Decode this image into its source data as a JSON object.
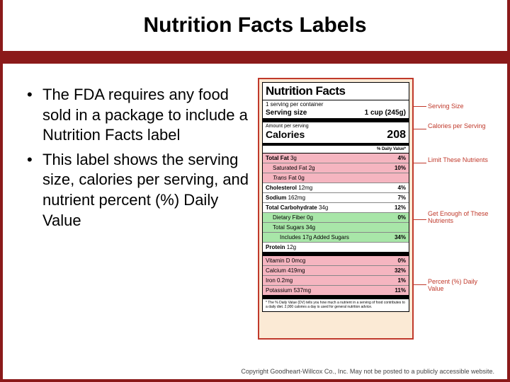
{
  "slide": {
    "title": "Nutrition Facts Labels",
    "accent_color": "#8b1a1a",
    "bullets": [
      "The FDA requires any food sold in a package to include a Nutrition Facts label",
      "This label shows the serving size, calories per serving, and nutrient percent (%) Daily Value"
    ]
  },
  "label": {
    "title": "Nutrition Facts",
    "servings_per_container": "1 serving per container",
    "serving_size_label": "Serving size",
    "serving_size_value": "1 cup (245g)",
    "amount_per_serving": "Amount per serving",
    "calories_label": "Calories",
    "calories_value": "208",
    "dv_header": "% Daily Value*",
    "nutrients": [
      {
        "name": "Total Fat",
        "amt": "3g",
        "pct": "4%",
        "bold": true,
        "hilite": "pink"
      },
      {
        "name": "Saturated Fat",
        "amt": "2g",
        "pct": "10%",
        "indent": 1,
        "hilite": "pink"
      },
      {
        "name": "Trans Fat",
        "amt": "0g",
        "pct": "",
        "indent": 1,
        "italic": true,
        "hilite": "pink"
      },
      {
        "name": "Cholesterol",
        "amt": "12mg",
        "pct": "4%",
        "bold": true
      },
      {
        "name": "Sodium",
        "amt": "162mg",
        "pct": "7%",
        "bold": true
      },
      {
        "name": "Total Carbohydrate",
        "amt": "34g",
        "pct": "12%",
        "bold": true
      },
      {
        "name": "Dietary Fiber",
        "amt": "0g",
        "pct": "0%",
        "indent": 1,
        "hilite": "green"
      },
      {
        "name": "Total Sugars",
        "amt": "34g",
        "pct": "",
        "indent": 1,
        "hilite": "green"
      },
      {
        "name": "Includes 17g Added Sugars",
        "amt": "",
        "pct": "34%",
        "indent": 2,
        "hilite": "green"
      },
      {
        "name": "Protein",
        "amt": "12g",
        "pct": "",
        "bold": true,
        "section_end": true
      },
      {
        "name": "Vitamin D",
        "amt": "0mcg",
        "pct": "0%",
        "hilite": "pink"
      },
      {
        "name": "Calcium",
        "amt": "419mg",
        "pct": "32%",
        "hilite": "pink"
      },
      {
        "name": "Iron",
        "amt": "0.2mg",
        "pct": "1%",
        "hilite": "pink"
      },
      {
        "name": "Potassium",
        "amt": "537mg",
        "pct": "11%",
        "hilite": "pink",
        "section_end": true
      }
    ],
    "footnote": "* The % Daily Value (DV) tells you how much a nutrient in a serving of food contributes to a daily diet. 2,000 calories a day is used for general nutrition advice."
  },
  "callouts": {
    "c1": "Serving Size",
    "c2": "Calories per Serving",
    "c3": "Limit These Nutrients",
    "c4": "Get Enough of These Nutrients",
    "c5": "Percent (%) Daily Value"
  },
  "copyright": "Copyright Goodheart-Willcox Co., Inc.  May not be posted to a publicly accessible website."
}
